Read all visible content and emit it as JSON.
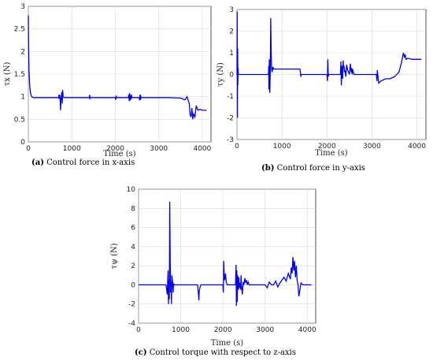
{
  "chart_data": [
    {
      "type": "line",
      "panel": "a",
      "caption_letter": "(a)",
      "caption": " Control force in x-axis",
      "xlabel": "Time (s)",
      "ylabel": "τx (N)",
      "xlim": [
        0,
        4200
      ],
      "ylim": [
        0,
        3
      ],
      "xticks": [
        0,
        1000,
        2000,
        3000,
        4000
      ],
      "yticks": [
        0,
        0.5,
        1,
        1.5,
        2,
        2.5,
        3
      ],
      "color": "#0000ee",
      "x": [
        0,
        5,
        15,
        30,
        50,
        70,
        90,
        120,
        700,
        705,
        710,
        720,
        730,
        740,
        750,
        760,
        770,
        780,
        790,
        800,
        820,
        850,
        880,
        1400,
        1410,
        1415,
        1430,
        2000,
        2010,
        2020,
        2030,
        2300,
        2310,
        2320,
        2330,
        2340,
        2350,
        2360,
        2370,
        2380,
        2400,
        2420,
        2550,
        2560,
        2570,
        2580,
        2590,
        2600,
        3200,
        3500,
        3600,
        3650,
        3700,
        3720,
        3740,
        3760,
        3780,
        3800,
        3830,
        3860,
        3900,
        3950,
        4000,
        4100
      ],
      "y": [
        2.8,
        2.2,
        1.6,
        1.25,
        1.08,
        1.01,
        0.99,
        0.98,
        0.98,
        1.05,
        0.95,
        1.04,
        0.98,
        0.7,
        0.9,
        1.02,
        1.1,
        0.85,
        1.15,
        1.0,
        0.98,
        0.98,
        0.98,
        0.98,
        1.04,
        0.96,
        0.98,
        0.98,
        0.93,
        1.02,
        0.98,
        0.98,
        1.05,
        0.9,
        1.08,
        0.92,
        1.02,
        0.94,
        1.05,
        0.98,
        0.98,
        0.98,
        0.98,
        0.92,
        1.05,
        0.93,
        1.0,
        0.98,
        0.98,
        0.97,
        0.93,
        1.0,
        0.85,
        0.6,
        0.55,
        0.75,
        0.5,
        0.62,
        0.55,
        0.8,
        0.7,
        0.72,
        0.7,
        0.7
      ]
    },
    {
      "type": "line",
      "panel": "b",
      "caption_letter": "(b)",
      "caption": " Control force in y-axis",
      "xlabel": "Time (s)",
      "ylabel": "τy (N)",
      "xlim": [
        0,
        4200
      ],
      "ylim": [
        -3,
        3
      ],
      "xticks": [
        0,
        1000,
        2000,
        3000,
        4000
      ],
      "yticks": [
        -3,
        -2,
        -1,
        0,
        1,
        2,
        3
      ],
      "color": "#0000ee",
      "x": [
        0,
        5,
        10,
        15,
        20,
        25,
        30,
        40,
        50,
        60,
        80,
        100,
        700,
        705,
        710,
        715,
        720,
        730,
        740,
        750,
        760,
        770,
        780,
        790,
        800,
        810,
        820,
        850,
        900,
        1400,
        1410,
        1420,
        1430,
        1450,
        2000,
        2010,
        2020,
        2030,
        2040,
        2100,
        2200,
        2300,
        2310,
        2320,
        2330,
        2340,
        2350,
        2360,
        2370,
        2380,
        2390,
        2400,
        2420,
        2430,
        2440,
        2460,
        2500,
        2520,
        2540,
        2550,
        2560,
        2570,
        2600,
        3100,
        3110,
        3120,
        3150,
        3200,
        3300,
        3400,
        3500,
        3600,
        3650,
        3700,
        3720,
        3740,
        3760,
        3800,
        3900,
        4100
      ],
      "y": [
        0,
        2.9,
        -2.0,
        1.2,
        -0.5,
        0.3,
        0.0,
        0.0,
        0.0,
        0.0,
        0.0,
        0.0,
        0.0,
        0.4,
        -0.7,
        0.2,
        0.7,
        -0.85,
        0.15,
        2.6,
        1.1,
        0.25,
        0.1,
        0.35,
        0.25,
        0.3,
        0.25,
        0.25,
        0.25,
        0.25,
        0.1,
        -0.1,
        0.0,
        0.0,
        0.0,
        -0.3,
        0.7,
        -0.1,
        0.0,
        0.0,
        0.0,
        0.0,
        0.6,
        -0.5,
        0.3,
        0.4,
        -0.2,
        0.65,
        0.3,
        0.4,
        0.1,
        0.2,
        -0.1,
        0.3,
        0.45,
        0.2,
        0.0,
        0.5,
        0.1,
        0.3,
        0.0,
        0.25,
        0.0,
        0.0,
        -0.3,
        0.2,
        -0.4,
        -0.3,
        -0.2,
        -0.2,
        -0.1,
        0.1,
        0.5,
        1.0,
        0.8,
        0.9,
        0.7,
        0.75,
        0.7,
        0.7
      ]
    },
    {
      "type": "line",
      "panel": "c",
      "caption_letter": "(c)",
      "caption": " Control torque with respect to z-axis",
      "xlabel": "Time (s)",
      "ylabel": "τψ (N)",
      "xlim": [
        0,
        4200
      ],
      "ylim": [
        -4,
        10
      ],
      "xticks": [
        0,
        1000,
        2000,
        3000,
        4000
      ],
      "yticks": [
        -4,
        -2,
        0,
        2,
        4,
        6,
        8,
        10
      ],
      "color": "#0000ee",
      "x": [
        0,
        100,
        650,
        660,
        680,
        700,
        710,
        720,
        730,
        740,
        750,
        760,
        770,
        780,
        790,
        800,
        810,
        820,
        830,
        850,
        900,
        1400,
        1410,
        1420,
        1430,
        1440,
        1460,
        1480,
        2000,
        2010,
        2020,
        2030,
        2040,
        2060,
        2080,
        2100,
        2150,
        2300,
        2310,
        2320,
        2330,
        2340,
        2350,
        2360,
        2370,
        2380,
        2390,
        2400,
        2420,
        2430,
        2440,
        2460,
        2480,
        2500,
        2520,
        2540,
        2560,
        2580,
        2600,
        2620,
        3000,
        3050,
        3100,
        3150,
        3200,
        3250,
        3300,
        3350,
        3400,
        3450,
        3500,
        3550,
        3600,
        3620,
        3640,
        3660,
        3680,
        3700,
        3720,
        3740,
        3760,
        3780,
        3800,
        3850,
        3900,
        4100
      ],
      "y": [
        0,
        0,
        0,
        -0.3,
        -1.0,
        1.5,
        -2.0,
        0.5,
        -1.5,
        8.7,
        2.5,
        -0.8,
        0.3,
        -2.0,
        1.0,
        0.5,
        0.2,
        -0.8,
        0.1,
        0.0,
        0.0,
        0.0,
        -0.5,
        -1.0,
        -1.6,
        -0.6,
        -0.2,
        0.0,
        0.0,
        -0.8,
        2.5,
        0.8,
        0.5,
        1.2,
        0.3,
        0.0,
        0.0,
        0.0,
        2.1,
        -2.2,
        1.5,
        -1.8,
        1.0,
        0.5,
        -0.5,
        0.8,
        -0.3,
        0.2,
        -0.5,
        1.0,
        0.0,
        -1.0,
        0.3,
        0.0,
        0.7,
        0.2,
        0.5,
        0.0,
        0.3,
        0.0,
        0.0,
        -0.3,
        0.3,
        0.0,
        0.0,
        0.4,
        -0.2,
        0.2,
        0.5,
        0.8,
        0.4,
        1.2,
        0.6,
        1.8,
        1.2,
        2.9,
        1.5,
        2.5,
        0.8,
        2.0,
        0.5,
        0.0,
        -1.2,
        0.2,
        0.0,
        0.0
      ]
    }
  ]
}
